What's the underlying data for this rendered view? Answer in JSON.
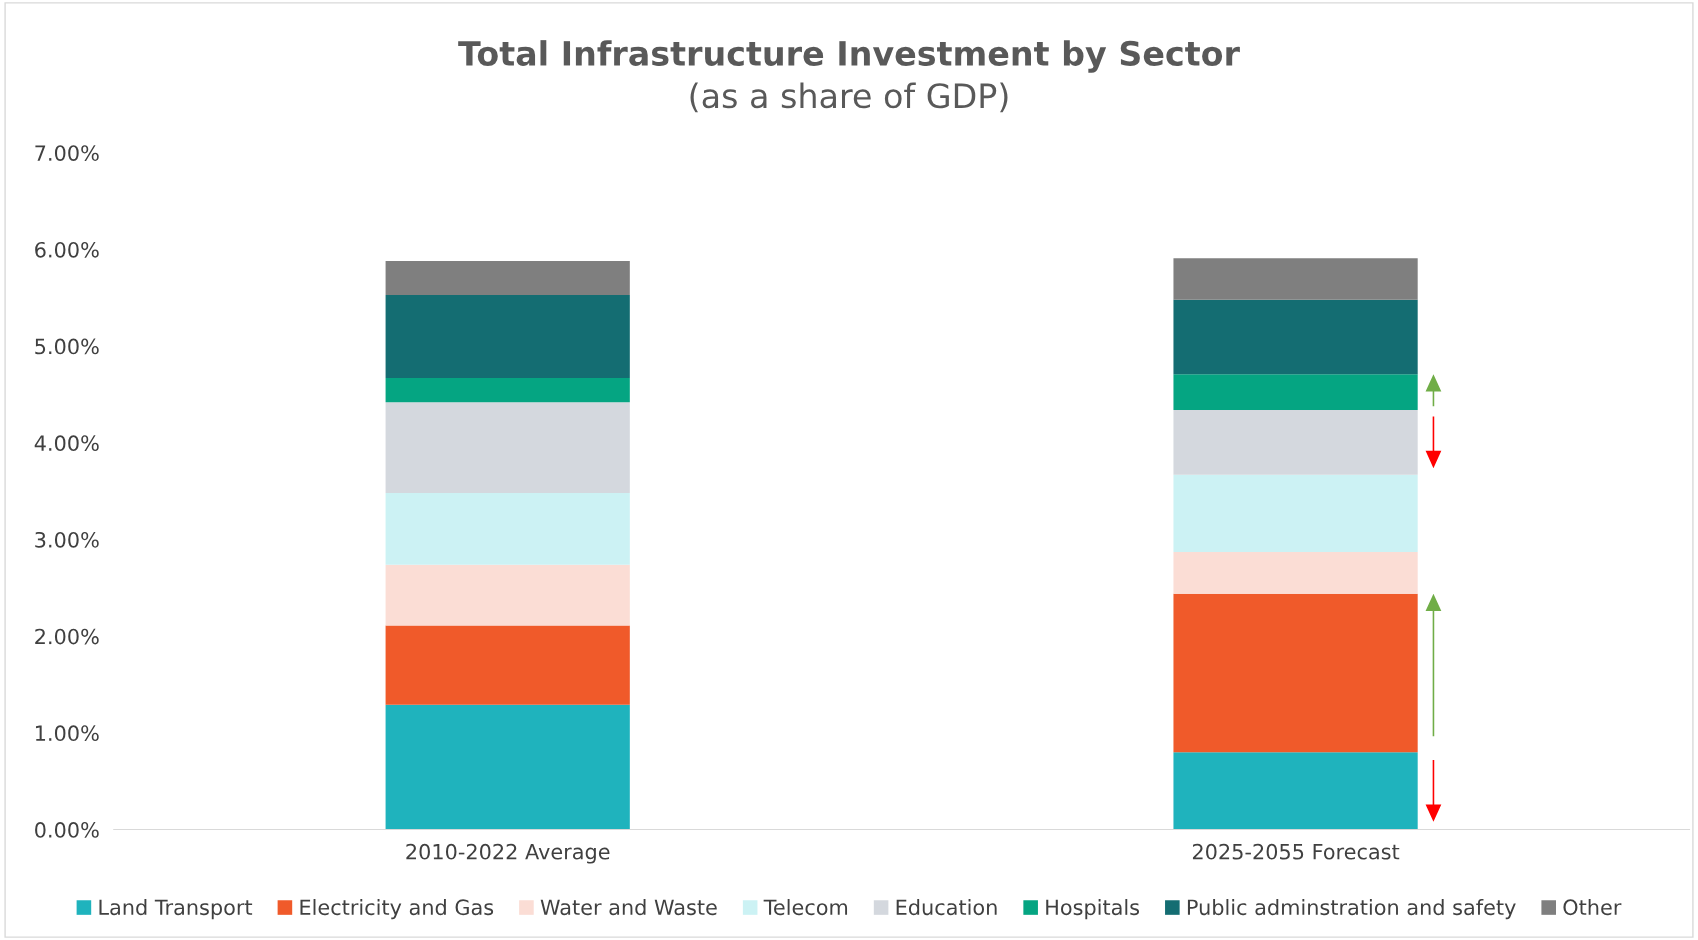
{
  "chart_data": {
    "type": "bar",
    "title": "Total Infrastructure Investment by Sector",
    "subtitle": "(as a share of GDP)",
    "categories": [
      "2010-2022 Average",
      "2025-2055 Forecast"
    ],
    "stacked": true,
    "legend": "bottom",
    "grid": false,
    "ylim": [
      0,
      7
    ],
    "yticks": [
      {
        "value": 0,
        "label": "0.00%"
      },
      {
        "value": 1,
        "label": "1.00%"
      },
      {
        "value": 2,
        "label": "2.00%"
      },
      {
        "value": 3,
        "label": "3.00%"
      },
      {
        "value": 4,
        "label": "4.00%"
      },
      {
        "value": 5,
        "label": "5.00%"
      },
      {
        "value": 6,
        "label": "6.00%"
      },
      {
        "value": 7,
        "label": "7.00%"
      }
    ],
    "series": [
      {
        "name": "Land Transport",
        "color": "#1fb3bd",
        "values": [
          1.29,
          0.8
        ]
      },
      {
        "name": "Electricity and Gas",
        "color": "#f05a2a",
        "values": [
          0.82,
          1.64
        ]
      },
      {
        "name": "Water and Waste",
        "color": "#fbddd5",
        "values": [
          0.63,
          0.43
        ]
      },
      {
        "name": "Telecom",
        "color": "#ccf2f4",
        "values": [
          0.74,
          0.8
        ]
      },
      {
        "name": "Education",
        "color": "#d4d8de",
        "values": [
          0.94,
          0.67
        ]
      },
      {
        "name": "Hospitals",
        "color": "#05a582",
        "values": [
          0.25,
          0.37
        ]
      },
      {
        "name": "Public adminstration and safety",
        "color": "#146d72",
        "values": [
          0.86,
          0.77
        ]
      },
      {
        "name": "Other",
        "color": "#7f7f7f",
        "values": [
          0.35,
          0.43
        ]
      }
    ]
  }
}
